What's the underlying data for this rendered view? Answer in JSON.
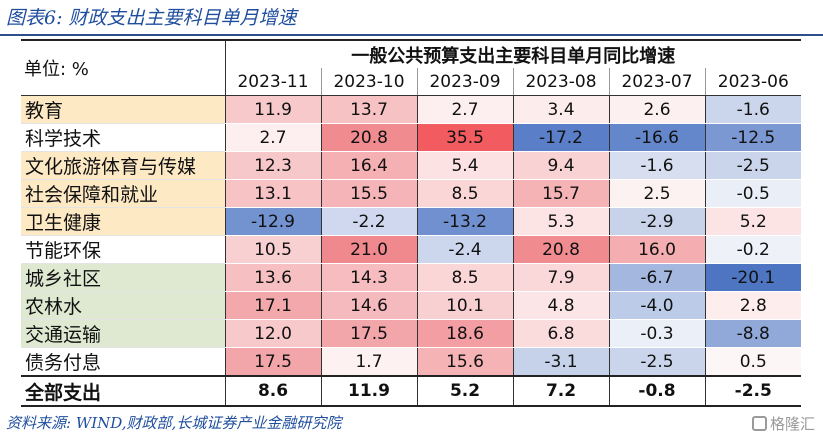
{
  "title": "图表6: 财政支出主要科目单月增速",
  "unit_label": "单位: %",
  "group_header": "一般公共预算支出主要科目单月同比增速",
  "months": [
    "2023-11",
    "2023-10",
    "2023-09",
    "2023-08",
    "2023-07",
    "2023-06"
  ],
  "rows": [
    {
      "label": "教育",
      "bg": "#fde9c4",
      "values": [
        "11.9",
        "13.7",
        "2.7",
        "3.4",
        "2.6",
        "-1.6"
      ],
      "cells": [
        "#f7c9cb",
        "#f6c2c4",
        "#fdeff0",
        "#fdecec",
        "#fdf0f0",
        "#cbd6ec"
      ]
    },
    {
      "label": "科学技术",
      "bg": "#ffffff",
      "values": [
        "2.7",
        "20.8",
        "35.5",
        "-17.2",
        "-16.6",
        "-12.5"
      ],
      "cells": [
        "#fdeff0",
        "#f08c90",
        "#f25b5f",
        "#5a7fc8",
        "#6487cb",
        "#7c98d2"
      ]
    },
    {
      "label": "文化旅游体育与传媒",
      "bg": "#fde9c4",
      "values": [
        "12.3",
        "16.4",
        "5.4",
        "9.4",
        "-1.6",
        "-2.5"
      ],
      "cells": [
        "#f7c8ca",
        "#f4b0b3",
        "#fce2e3",
        "#f9d2d3",
        "#d6def0",
        "#cad5eb"
      ]
    },
    {
      "label": "社会保障和就业",
      "bg": "#fde9c4",
      "values": [
        "13.1",
        "15.5",
        "8.5",
        "15.7",
        "2.5",
        "-0.5"
      ],
      "cells": [
        "#f7c3c5",
        "#f5b4b7",
        "#fad6d7",
        "#f5b3b6",
        "#fdf2f2",
        "#eaeef7"
      ]
    },
    {
      "label": "卫生健康",
      "bg": "#fde9c4",
      "values": [
        "-12.9",
        "-2.2",
        "-13.2",
        "5.3",
        "-2.9",
        "5.2"
      ],
      "cells": [
        "#7392d0",
        "#cfd8ee",
        "#7190cf",
        "#fce3e4",
        "#c8d3ea",
        "#fce3e4"
      ]
    },
    {
      "label": "节能环保",
      "bg": "#ffffff",
      "values": [
        "10.5",
        "21.0",
        "-2.4",
        "20.8",
        "16.0",
        "-0.2"
      ],
      "cells": [
        "#f9d0d2",
        "#ef898d",
        "#ccd6ed",
        "#f08c90",
        "#f4adb0",
        "#eef1f8"
      ]
    },
    {
      "label": "城乡社区",
      "bg": "#dfe9d2",
      "values": [
        "13.6",
        "14.3",
        "8.5",
        "7.9",
        "-6.7",
        "-20.1"
      ],
      "cells": [
        "#f6c0c3",
        "#f6bcbf",
        "#fad6d7",
        "#fad8d9",
        "#a3b7df",
        "#4e75c2"
      ]
    },
    {
      "label": "农林水",
      "bg": "#dfe9d2",
      "values": [
        "17.1",
        "14.6",
        "10.1",
        "4.8",
        "-4.0",
        "2.8"
      ],
      "cells": [
        "#f3a8ab",
        "#f5babd",
        "#f9d0d2",
        "#fce5e6",
        "#bccbe7",
        "#fdeded"
      ]
    },
    {
      "label": "交通运输",
      "bg": "#dfe9d2",
      "values": [
        "12.0",
        "17.5",
        "18.6",
        "6.8",
        "-0.3",
        "-8.8"
      ],
      "cells": [
        "#f7c9cb",
        "#f3a6a9",
        "#f29ea2",
        "#fbdcdd",
        "#ebeff8",
        "#90a9d8"
      ]
    },
    {
      "label": "债务付息",
      "bg": "#ffffff",
      "values": [
        "17.5",
        "1.7",
        "15.6",
        "-3.1",
        "-2.5",
        "0.5"
      ],
      "cells": [
        "#f3a6a9",
        "#fdf1f1",
        "#f5b3b6",
        "#c6d2ea",
        "#cad5eb",
        "#fdf6f6"
      ]
    }
  ],
  "total": {
    "label": "全部支出",
    "values": [
      "8.6",
      "11.9",
      "5.2",
      "7.2",
      "-0.8",
      "-2.5"
    ]
  },
  "source": "资料来源: WIND,财政部,长城证券产业金融研究院",
  "watermark": "格隆汇"
}
